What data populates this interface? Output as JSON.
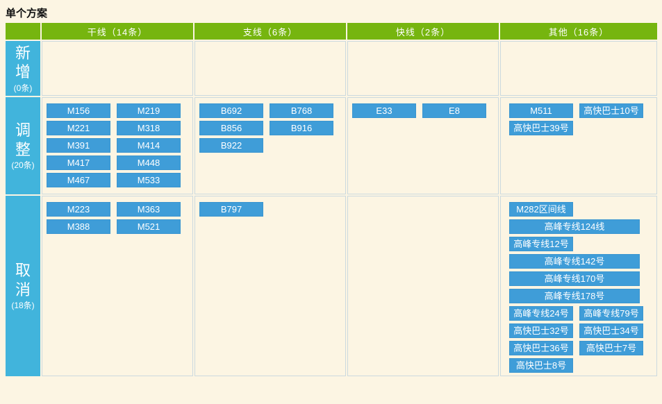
{
  "page": {
    "title": "单个方案"
  },
  "colors": {
    "background": "#FCF5E3",
    "header_green": "#76B50F",
    "label_cyan": "#41B4DC",
    "button_blue": "#3F9DD8",
    "cell_border": "#CBD9DF"
  },
  "table": {
    "columns": [
      {
        "label": "干线（14条）"
      },
      {
        "label": "支线（6条）"
      },
      {
        "label": "快线（2条）"
      },
      {
        "label": "其他（16条）"
      }
    ],
    "rows": [
      {
        "id": "new",
        "label_chars": [
          "新",
          "增"
        ],
        "count": "(0条)",
        "cells": [
          [],
          [],
          [],
          []
        ]
      },
      {
        "id": "adjust",
        "label_chars": [
          "调",
          "整"
        ],
        "count": "(20条)",
        "cells": [
          [
            [
              "M156",
              "M219"
            ],
            [
              "M221",
              "M318"
            ],
            [
              "M391",
              "M414"
            ],
            [
              "M417",
              "M448"
            ],
            [
              "M467",
              "M533"
            ]
          ],
          [
            [
              "B692",
              "B768"
            ],
            [
              "B856",
              "B916"
            ],
            [
              "B922"
            ]
          ],
          [
            [
              "E33",
              "E8"
            ]
          ],
          [
            [
              "M511",
              "高快巴士10号"
            ],
            [
              "高快巴士39号"
            ]
          ]
        ]
      },
      {
        "id": "cancel",
        "label_chars": [
          "取",
          "消"
        ],
        "count": "(18条)",
        "cells": [
          [
            [
              "M223",
              "M363"
            ],
            [
              "M388",
              "M521"
            ]
          ],
          [
            [
              "B797"
            ]
          ],
          [],
          [
            [
              "M282区间线"
            ],
            [
              {
                "text": "高峰专线124线",
                "wide": true
              }
            ],
            [
              "高峰专线12号"
            ],
            [
              {
                "text": "高峰专线142号",
                "wide": true
              }
            ],
            [
              {
                "text": "高峰专线170号",
                "wide": true
              }
            ],
            [
              {
                "text": "高峰专线178号",
                "wide": true
              }
            ],
            [
              "高峰专线24号",
              "高峰专线79号"
            ],
            [
              "高快巴士32号",
              "高快巴士34号"
            ],
            [
              "高快巴士36号",
              "高快巴士7号"
            ],
            [
              "高快巴士8号"
            ]
          ]
        ]
      }
    ]
  }
}
